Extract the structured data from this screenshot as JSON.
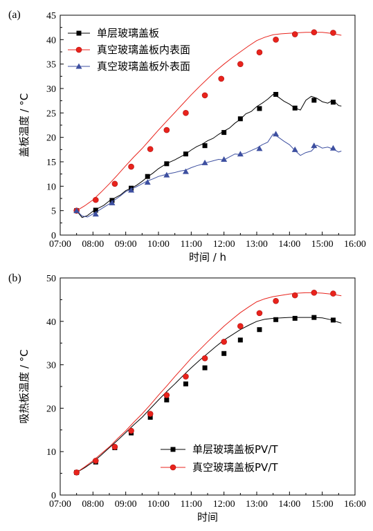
{
  "chart_data": [
    {
      "panel_label": "(a)",
      "type": "line",
      "xlabel": "时间 / h",
      "ylabel": "盖板温度 / °C",
      "xlim": [
        "07:00",
        "16:00"
      ],
      "ylim": [
        0,
        45
      ],
      "x_ticks": [
        "07:00",
        "08:00",
        "09:00",
        "10:00",
        "11:00",
        "12:00",
        "13:00",
        "14:00",
        "15:00",
        "16:00"
      ],
      "y_ticks": [
        0,
        5,
        10,
        15,
        20,
        25,
        30,
        35,
        40,
        45
      ],
      "legend_position": "top-left",
      "series": [
        {
          "name": "单层玻璃盖板",
          "color": "#000000",
          "marker": "square",
          "x": [
            "07:30",
            "07:40",
            "07:50",
            "08:00",
            "08:10",
            "08:20",
            "08:30",
            "08:40",
            "08:50",
            "09:00",
            "09:10",
            "09:20",
            "09:30",
            "09:40",
            "09:50",
            "10:00",
            "10:10",
            "10:20",
            "10:30",
            "10:40",
            "10:50",
            "11:00",
            "11:10",
            "11:20",
            "11:30",
            "11:40",
            "11:50",
            "12:00",
            "12:10",
            "12:20",
            "12:30",
            "12:40",
            "12:50",
            "13:00",
            "13:10",
            "13:20",
            "13:30",
            "13:40",
            "13:50",
            "14:00",
            "14:10",
            "14:20",
            "14:30",
            "14:40",
            "14:50",
            "15:00",
            "15:10",
            "15:20",
            "15:30",
            "15:35"
          ],
          "values": [
            5.0,
            3.6,
            4.0,
            4.9,
            5.5,
            6.1,
            7.0,
            7.6,
            8.2,
            9.1,
            9.6,
            10.2,
            11.0,
            11.9,
            12.7,
            13.6,
            14.3,
            14.9,
            15.4,
            16.0,
            16.6,
            17.4,
            18.1,
            18.6,
            19.3,
            19.8,
            20.6,
            21.3,
            21.9,
            22.9,
            23.7,
            24.8,
            25.3,
            26.3,
            27.0,
            27.8,
            28.8,
            28.2,
            27.4,
            26.8,
            26.0,
            25.6,
            27.6,
            28.4,
            28.0,
            27.3,
            27.0,
            27.6,
            26.5,
            26.4
          ],
          "marker_x": [
            "07:30",
            "08:05",
            "08:35",
            "09:10",
            "09:40",
            "10:15",
            "10:50",
            "11:25",
            "12:00",
            "12:30",
            "13:05",
            "13:35",
            "14:10",
            "14:45",
            "15:20"
          ],
          "marker_values": [
            5.0,
            5.1,
            7.1,
            9.6,
            12.0,
            14.6,
            16.6,
            18.3,
            21.0,
            23.8,
            25.9,
            28.8,
            26.0,
            27.6,
            27.2
          ]
        },
        {
          "name": "真空玻璃盖板内表面",
          "color": "#e8231c",
          "marker": "circle",
          "x": [
            "07:30",
            "07:45",
            "08:00",
            "08:15",
            "08:30",
            "08:45",
            "09:00",
            "09:15",
            "09:30",
            "09:45",
            "10:00",
            "10:15",
            "10:30",
            "10:45",
            "11:00",
            "11:15",
            "11:30",
            "11:45",
            "12:00",
            "12:15",
            "12:30",
            "12:45",
            "13:00",
            "13:15",
            "13:30",
            "13:45",
            "14:00",
            "14:15",
            "14:30",
            "14:45",
            "15:00",
            "15:15",
            "15:30",
            "15:35"
          ],
          "values": [
            5.0,
            6.0,
            7.2,
            8.8,
            10.5,
            12.3,
            14.2,
            16.0,
            17.7,
            19.6,
            21.5,
            23.3,
            25.1,
            26.9,
            28.7,
            30.4,
            32.0,
            33.6,
            35.0,
            36.3,
            37.5,
            38.7,
            39.8,
            40.5,
            41.0,
            41.2,
            41.3,
            41.4,
            41.5,
            41.5,
            41.5,
            41.3,
            41.0,
            40.9
          ],
          "marker_x": [
            "07:30",
            "08:05",
            "08:40",
            "09:10",
            "09:45",
            "10:15",
            "10:50",
            "11:25",
            "11:55",
            "12:30",
            "13:05",
            "13:35",
            "14:10",
            "14:45",
            "15:20"
          ],
          "marker_values": [
            5.0,
            7.2,
            10.5,
            14.0,
            17.6,
            21.5,
            25.0,
            28.6,
            32.0,
            35.0,
            37.4,
            40.0,
            41.1,
            41.5,
            41.4
          ]
        },
        {
          "name": "真空玻璃盖板外表面",
          "color": "#3d4fa0",
          "marker": "triangle",
          "x": [
            "07:30",
            "07:40",
            "07:50",
            "08:00",
            "08:10",
            "08:20",
            "08:30",
            "08:40",
            "08:50",
            "09:00",
            "09:10",
            "09:20",
            "09:30",
            "09:40",
            "09:50",
            "10:00",
            "10:10",
            "10:20",
            "10:30",
            "10:40",
            "10:50",
            "11:00",
            "11:10",
            "11:20",
            "11:30",
            "11:40",
            "11:50",
            "12:00",
            "12:10",
            "12:20",
            "12:30",
            "12:40",
            "12:50",
            "13:00",
            "13:10",
            "13:20",
            "13:30",
            "13:40",
            "13:50",
            "14:00",
            "14:10",
            "14:20",
            "14:30",
            "14:40",
            "14:50",
            "15:00",
            "15:10",
            "15:20",
            "15:30",
            "15:35"
          ],
          "values": [
            5.0,
            3.9,
            3.7,
            4.3,
            5.0,
            5.7,
            6.4,
            7.2,
            8.0,
            8.9,
            9.4,
            9.9,
            10.5,
            11.1,
            11.5,
            12.0,
            12.3,
            12.6,
            12.8,
            13.1,
            13.3,
            13.8,
            14.2,
            14.5,
            14.9,
            15.2,
            15.5,
            15.4,
            16.0,
            16.6,
            16.5,
            16.8,
            17.3,
            17.8,
            18.5,
            19.0,
            20.7,
            20.0,
            19.2,
            18.5,
            17.3,
            16.3,
            16.9,
            17.2,
            18.4,
            17.8,
            18.0,
            17.6,
            17.0,
            17.2
          ],
          "marker_x": [
            "07:30",
            "08:05",
            "08:35",
            "09:10",
            "09:40",
            "10:15",
            "10:50",
            "11:25",
            "12:00",
            "12:30",
            "13:05",
            "13:35",
            "14:10",
            "14:45",
            "15:20"
          ],
          "marker_values": [
            5.0,
            4.3,
            6.6,
            9.2,
            10.8,
            12.3,
            13.0,
            14.8,
            15.5,
            16.6,
            17.7,
            20.7,
            17.5,
            18.3,
            17.8
          ]
        }
      ]
    },
    {
      "panel_label": "(b)",
      "type": "line",
      "xlabel": "时间",
      "ylabel": "吸热板温度 / °C",
      "xlim": [
        "07:00",
        "16:00"
      ],
      "ylim": [
        0,
        50
      ],
      "x_ticks": [
        "07:00",
        "08:00",
        "09:00",
        "10:00",
        "11:00",
        "12:00",
        "13:00",
        "14:00",
        "15:00",
        "16:00"
      ],
      "y_ticks": [
        0,
        10,
        20,
        30,
        40,
        50
      ],
      "legend_position": "bottom-right",
      "series": [
        {
          "name": "单层玻璃盖板PV/T",
          "color": "#000000",
          "marker": "square",
          "x": [
            "07:30",
            "07:45",
            "08:00",
            "08:15",
            "08:30",
            "08:45",
            "09:00",
            "09:15",
            "09:30",
            "09:45",
            "10:00",
            "10:15",
            "10:30",
            "10:45",
            "11:00",
            "11:15",
            "11:30",
            "11:45",
            "12:00",
            "12:15",
            "12:30",
            "12:45",
            "13:00",
            "13:15",
            "13:30",
            "13:45",
            "14:00",
            "14:15",
            "14:30",
            "14:45",
            "15:00",
            "15:15",
            "15:30",
            "15:35"
          ],
          "values": [
            5.2,
            6.3,
            7.6,
            9.2,
            10.9,
            12.6,
            14.4,
            16.2,
            17.9,
            19.9,
            21.9,
            23.8,
            25.6,
            27.5,
            29.3,
            31.0,
            32.6,
            34.2,
            35.7,
            36.9,
            38.1,
            39.1,
            40.0,
            40.5,
            40.7,
            40.8,
            40.9,
            40.9,
            40.9,
            40.9,
            40.8,
            40.4,
            39.8,
            39.6
          ],
          "marker_x": [
            "07:30",
            "08:05",
            "08:40",
            "09:10",
            "09:45",
            "10:15",
            "10:50",
            "11:25",
            "12:00",
            "12:30",
            "13:05",
            "13:35",
            "14:10",
            "14:45",
            "15:20"
          ],
          "marker_values": [
            5.2,
            7.6,
            10.9,
            14.3,
            17.9,
            21.9,
            25.6,
            29.3,
            32.6,
            35.7,
            38.1,
            40.4,
            40.7,
            40.9,
            40.3
          ]
        },
        {
          "name": "真空玻璃盖板PV/T",
          "color": "#e8231c",
          "marker": "circle",
          "x": [
            "07:30",
            "07:45",
            "08:00",
            "08:15",
            "08:30",
            "08:45",
            "09:00",
            "09:15",
            "09:30",
            "09:45",
            "10:00",
            "10:15",
            "10:30",
            "10:45",
            "11:00",
            "11:15",
            "11:30",
            "11:45",
            "12:00",
            "12:15",
            "12:30",
            "12:45",
            "13:00",
            "13:15",
            "13:30",
            "13:45",
            "14:00",
            "14:15",
            "14:30",
            "14:45",
            "15:00",
            "15:15",
            "15:30",
            "15:35"
          ],
          "values": [
            5.2,
            6.5,
            7.9,
            9.5,
            11.1,
            13.0,
            14.8,
            16.8,
            18.7,
            20.8,
            23.0,
            25.1,
            27.3,
            29.4,
            31.5,
            33.4,
            35.3,
            37.1,
            38.9,
            40.5,
            42.0,
            43.3,
            44.5,
            45.2,
            45.7,
            46.0,
            46.3,
            46.5,
            46.6,
            46.6,
            46.5,
            46.3,
            46.0,
            45.9
          ],
          "marker_x": [
            "07:30",
            "08:05",
            "08:40",
            "09:10",
            "09:45",
            "10:15",
            "10:50",
            "11:25",
            "12:00",
            "12:30",
            "13:05",
            "13:35",
            "14:10",
            "14:45",
            "15:20"
          ],
          "marker_values": [
            5.2,
            7.9,
            11.1,
            14.8,
            18.7,
            23.0,
            27.3,
            31.5,
            35.3,
            38.9,
            41.9,
            44.7,
            46.0,
            46.6,
            46.4
          ]
        }
      ]
    }
  ]
}
